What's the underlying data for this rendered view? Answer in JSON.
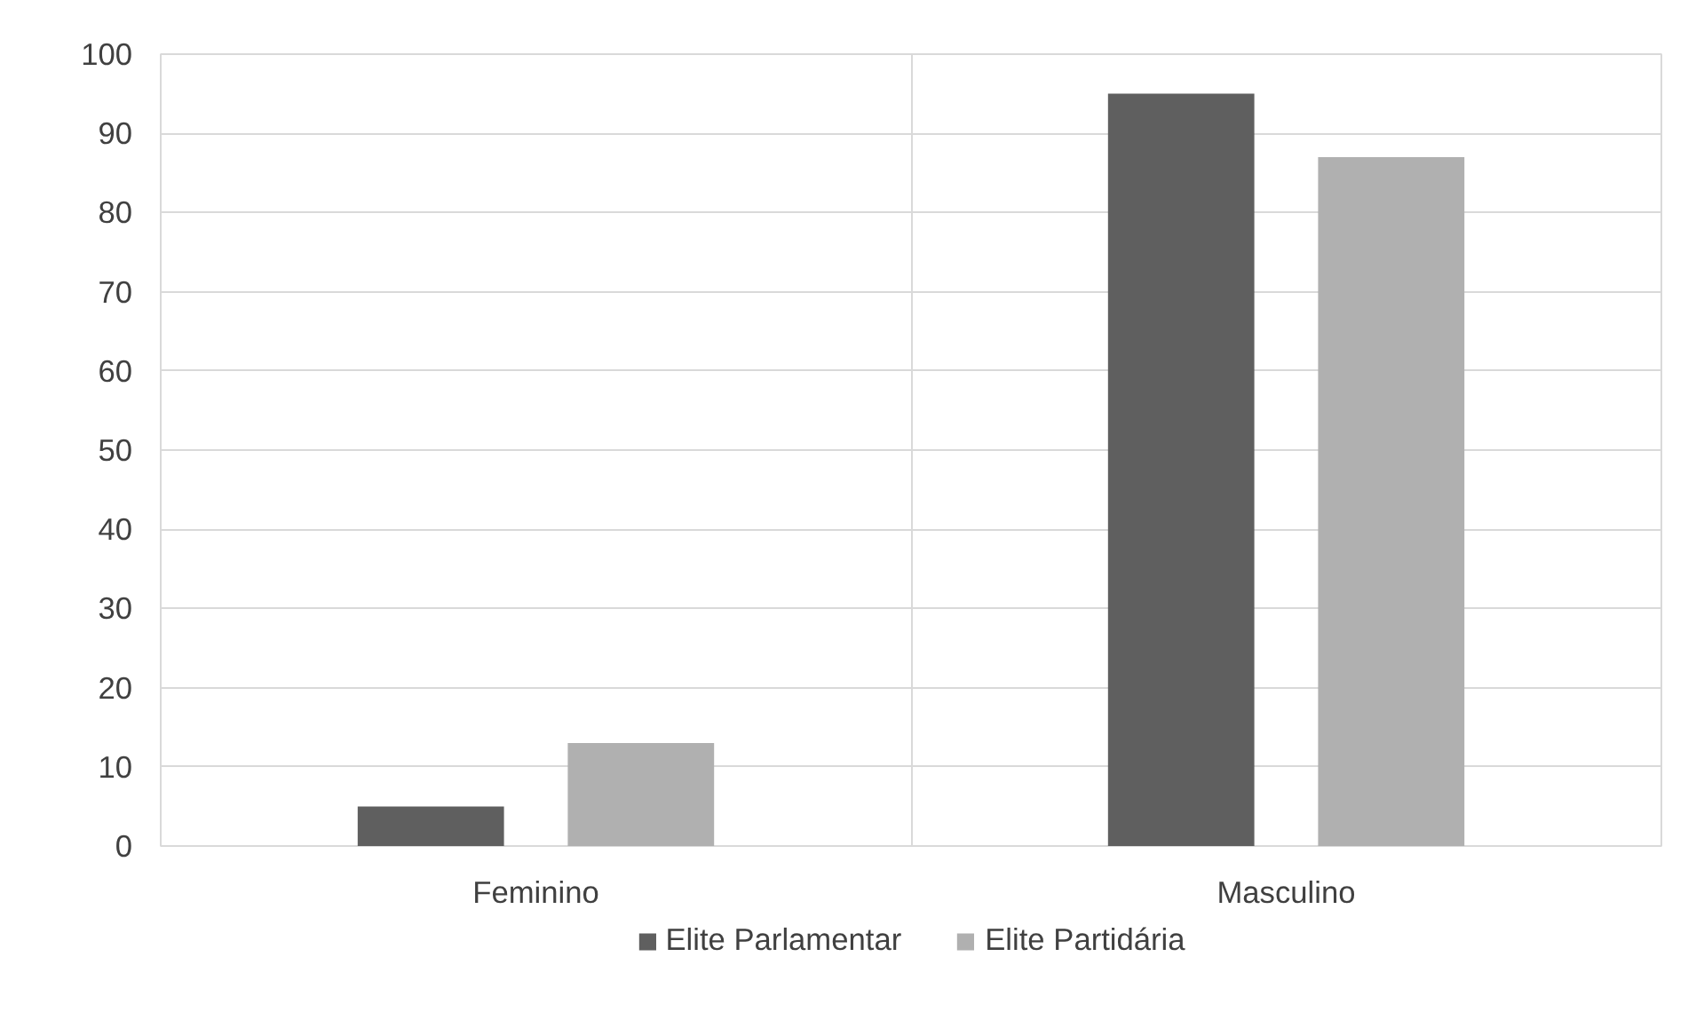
{
  "chart_data": {
    "type": "bar",
    "categories": [
      "Feminino",
      "Masculino"
    ],
    "series": [
      {
        "name": "Elite Parlamentar",
        "color": "#5f5f5f",
        "values": [
          5,
          95
        ]
      },
      {
        "name": "Elite Partidária",
        "color": "#b0b0b0",
        "values": [
          13,
          87
        ]
      }
    ],
    "ylim": [
      0,
      100
    ],
    "yticks": [
      0,
      10,
      20,
      30,
      40,
      50,
      60,
      70,
      80,
      90,
      100
    ],
    "grid": "y",
    "legend": "bottom"
  }
}
